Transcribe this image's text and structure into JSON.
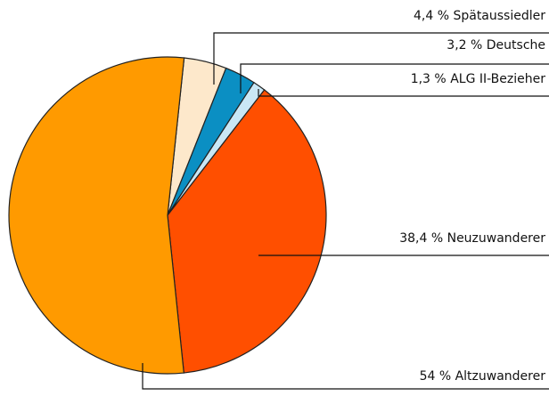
{
  "chart_data": {
    "type": "pie",
    "categories": [
      "Spätaussiedler",
      "Deutsche",
      "ALG II-Bezieher",
      "Neuzuwanderer",
      "Altzuwanderer"
    ],
    "values": [
      4.4,
      3.2,
      1.3,
      38.4,
      54
    ],
    "value_labels": [
      "4,4 %",
      "3,2 %",
      "1,3 %",
      "38,4 %",
      "54 %"
    ],
    "colors": [
      "#fde8cb",
      "#0b8fc3",
      "#c9e7f5",
      "#ff4f00",
      "#ff9a00"
    ]
  }
}
